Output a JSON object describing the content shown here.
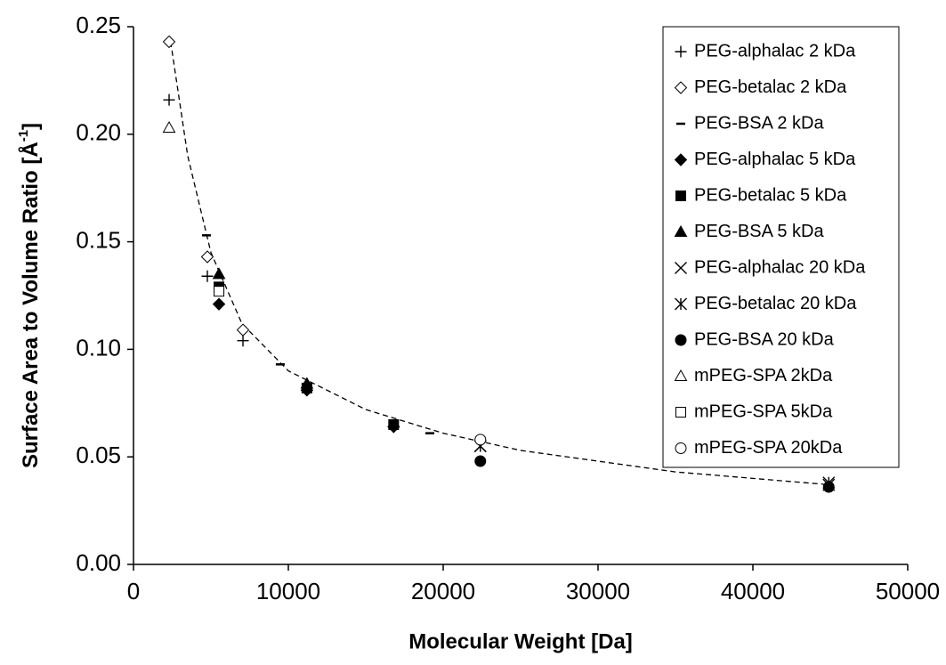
{
  "chart_data": {
    "type": "scatter",
    "x_label": "Molecular Weight [Da]",
    "y_label": {
      "text": "Surface Area to Volume Ratio [Å",
      "sup": "-1",
      "end": "]"
    },
    "xlim": [
      0,
      50000
    ],
    "xticks": [
      0,
      10000,
      20000,
      30000,
      40000,
      50000
    ],
    "ylim": [
      0,
      0.25
    ],
    "yticks": [
      {
        "value": 0,
        "label": "0.00"
      },
      {
        "value": 0.05,
        "label": "0.05"
      },
      {
        "value": 0.1,
        "label": "0.10"
      },
      {
        "value": 0.15,
        "label": "0.15"
      },
      {
        "value": 0.2,
        "label": "0.20"
      },
      {
        "value": 0.25,
        "label": "0.25"
      }
    ],
    "legend_position": "upper right",
    "series": [
      {
        "name": "PEG-alphalac 2 kDa",
        "color": "#000000",
        "marker": "plus",
        "x": [
          2300,
          4770,
          7070
        ],
        "values": [
          0.216,
          0.134,
          0.104
        ]
      },
      {
        "name": "PEG-betalac 2 kDa",
        "color": "#000000",
        "marker": "diamond-open",
        "x": [
          2300,
          4770,
          7070
        ],
        "values": [
          0.243,
          0.143,
          0.109
        ]
      },
      {
        "name": "PEG-BSA 2 kDa",
        "color": "#000000",
        "marker": "dash",
        "x": [
          4710,
          9480,
          19140
        ],
        "values": [
          0.153,
          0.093,
          0.061
        ]
      },
      {
        "name": "PEG-alphalac 5 kDa",
        "color": "#000000",
        "marker": "diamond",
        "x": [
          5520,
          11200,
          16800
        ],
        "values": [
          0.121,
          0.081,
          0.064
        ]
      },
      {
        "name": "PEG-betalac 5 kDa",
        "color": "#000000",
        "marker": "square",
        "x": [
          5520,
          11200,
          16800
        ],
        "values": [
          0.129,
          0.082,
          0.065
        ]
      },
      {
        "name": "PEG-BSA 5 kDa",
        "color": "#000000",
        "marker": "triangle",
        "x": [
          5520,
          11200
        ],
        "values": [
          0.135,
          0.084
        ]
      },
      {
        "name": "PEG-alphalac 20 kDa",
        "color": "#000000",
        "marker": "x",
        "x": [
          22400,
          44900
        ],
        "values": [
          0.055,
          0.037
        ]
      },
      {
        "name": "PEG-betalac 20 kDa",
        "color": "#000000",
        "marker": "asterisk",
        "x": [
          22400,
          44900
        ],
        "values": [
          0.055,
          0.038
        ]
      },
      {
        "name": "PEG-BSA 20 kDa",
        "color": "#000000",
        "marker": "circle",
        "x": [
          22400,
          44900
        ],
        "values": [
          0.048,
          0.036
        ]
      },
      {
        "name": "mPEG-SPA 2kDa",
        "color": "#000000",
        "marker": "triangle-open",
        "x": [
          2300
        ],
        "values": [
          0.203
        ]
      },
      {
        "name": "mPEG-SPA 5kDa",
        "color": "#000000",
        "marker": "square-open",
        "x": [
          5520
        ],
        "values": [
          0.127
        ]
      },
      {
        "name": "mPEG-SPA 20kDa",
        "color": "#000000",
        "marker": "circle-open",
        "x": [
          22400
        ],
        "values": [
          0.058
        ]
      }
    ],
    "fit_line": {
      "color": "#000000",
      "dashed": true,
      "x": [
        2400,
        3500,
        5000,
        7000,
        10000,
        15000,
        20000,
        25000,
        30000,
        35000,
        40000,
        45000
      ],
      "values": [
        0.243,
        0.19,
        0.145,
        0.112,
        0.09,
        0.072,
        0.061,
        0.053,
        0.048,
        0.043,
        0.04,
        0.037
      ]
    }
  }
}
